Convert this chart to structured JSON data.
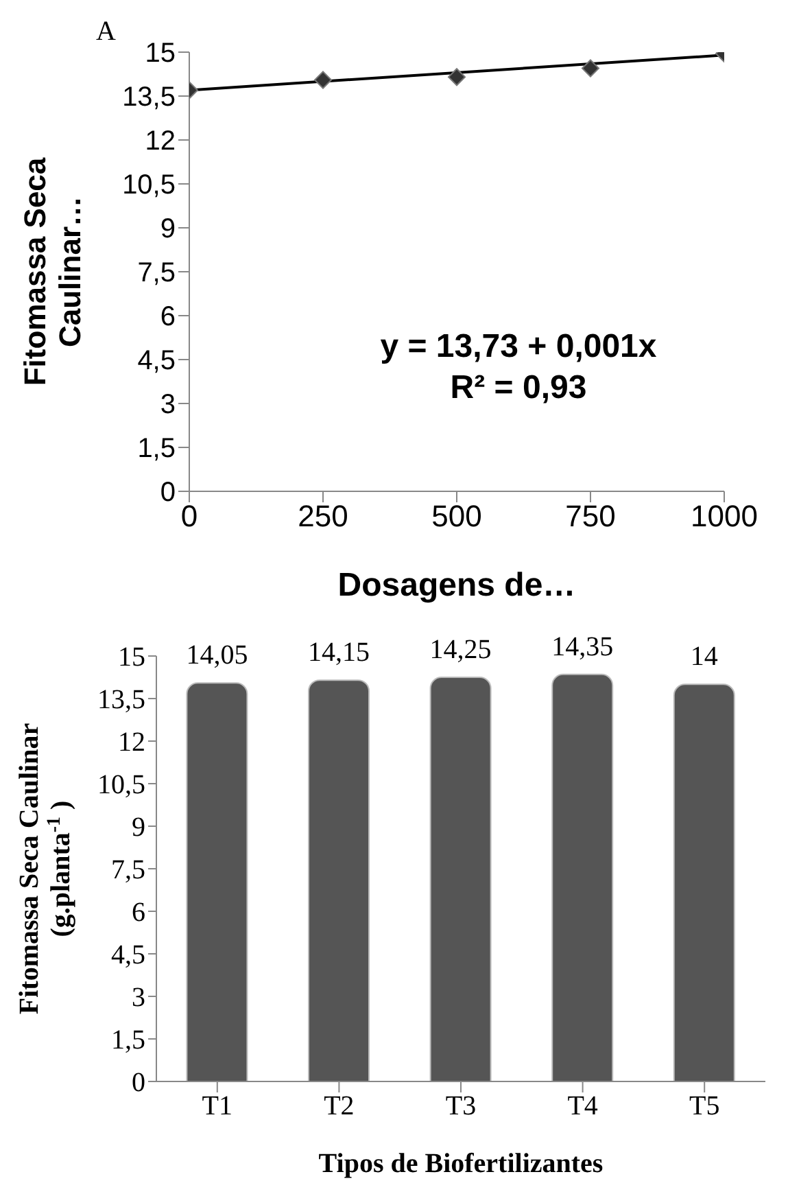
{
  "chart_data": [
    {
      "type": "scatter",
      "title": "A",
      "xlabel": "Dosagens de…",
      "ylabel": "Fitomassa Seca Caulinar…",
      "annotations": [
        "y = 13,73 + 0,001x",
        "R² = 0,93"
      ],
      "x": [
        0,
        250,
        500,
        750,
        1000
      ],
      "series": [
        {
          "type": "scatter",
          "color": "#333333",
          "marker": "diamond",
          "values": [
            13.7,
            14.05,
            14.15,
            14.45,
            14.95
          ]
        },
        {
          "type": "line",
          "color": "#000000",
          "marker": "none",
          "line_style": "solid",
          "x": [
            0,
            1000
          ],
          "values": [
            13.7,
            14.9
          ]
        }
      ],
      "xlim": [
        0,
        1000
      ],
      "xticks": [
        0,
        250,
        500,
        750,
        1000
      ],
      "ylim": [
        0,
        15
      ],
      "yticks": [
        0,
        {
          "value": 1.5,
          "label": "1,5"
        },
        3,
        {
          "value": 4.5,
          "label": "4,5"
        },
        6,
        {
          "value": 7.5,
          "label": "7,5"
        },
        9,
        {
          "value": 10.5,
          "label": "10,5"
        },
        12,
        {
          "value": 13.5,
          "label": "13,5"
        },
        15
      ],
      "grid": false,
      "legend": false
    },
    {
      "type": "bar",
      "xlabel": "Tipos de Biofertilizantes",
      "ylabel": "Fitomassa Seca Caulinar (g.planta$^{-1}$)",
      "categories": [
        "T1",
        "T2",
        "T3",
        "T4",
        "T5"
      ],
      "values": [
        14.05,
        14.15,
        14.25,
        14.35,
        14
      ],
      "value_labels": [
        "14,05",
        "14,15",
        "14,25",
        "14,35",
        "14"
      ],
      "color": "#555555",
      "ylim": [
        0,
        15
      ],
      "yticks": [
        0,
        {
          "value": 1.5,
          "label": "1,5"
        },
        3,
        {
          "value": 4.5,
          "label": "4,5"
        },
        6,
        {
          "value": 7.5,
          "label": "7,5"
        },
        9,
        {
          "value": 10.5,
          "label": "10,5"
        },
        12,
        {
          "value": 13.5,
          "label": "13,5"
        },
        15
      ],
      "grid": false,
      "legend": false
    }
  ]
}
